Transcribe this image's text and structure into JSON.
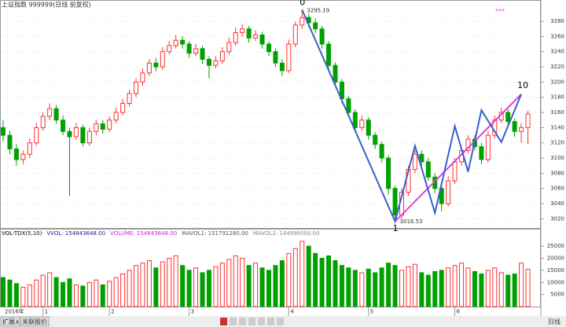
{
  "chart_data": {
    "type": "candlestick",
    "title": "上证指数 999999(日线 前复权)",
    "categories": [
      "2016年",
      null,
      null,
      null,
      null,
      null,
      "1",
      null,
      null,
      null,
      null,
      null,
      null,
      null,
      null,
      null,
      "2",
      null,
      null,
      null,
      null,
      null,
      null,
      null,
      null,
      null,
      null,
      null,
      "3",
      null,
      null,
      null,
      null,
      null,
      null,
      null,
      null,
      null,
      null,
      null,
      null,
      null,
      null,
      "4",
      null,
      null,
      null,
      null,
      null,
      null,
      null,
      null,
      null,
      null,
      null,
      "5",
      null,
      null,
      null,
      null,
      null,
      null,
      null,
      null,
      null,
      null,
      null,
      null,
      "6",
      null,
      null,
      null,
      null,
      null,
      null,
      null,
      null,
      null,
      null,
      null
    ],
    "ohlc": [
      [
        3140,
        3150,
        3122,
        3130
      ],
      [
        3130,
        3136,
        3105,
        3112
      ],
      [
        3112,
        3118,
        3090,
        3098
      ],
      [
        3098,
        3110,
        3092,
        3105
      ],
      [
        3105,
        3126,
        3100,
        3120
      ],
      [
        3120,
        3146,
        3116,
        3140
      ],
      [
        3140,
        3160,
        3136,
        3155
      ],
      [
        3155,
        3172,
        3150,
        3165
      ],
      [
        3165,
        3170,
        3145,
        3150
      ],
      [
        3150,
        3156,
        3130,
        3135
      ],
      [
        3135,
        3140,
        3050,
        3128
      ],
      [
        3128,
        3146,
        3124,
        3140
      ],
      [
        3140,
        3144,
        3115,
        3120
      ],
      [
        3120,
        3140,
        3116,
        3135
      ],
      [
        3135,
        3150,
        3130,
        3145
      ],
      [
        3145,
        3150,
        3132,
        3138
      ],
      [
        3138,
        3155,
        3134,
        3150
      ],
      [
        3150,
        3166,
        3146,
        3160
      ],
      [
        3160,
        3178,
        3156,
        3172
      ],
      [
        3172,
        3190,
        3168,
        3185
      ],
      [
        3185,
        3205,
        3180,
        3200
      ],
      [
        3200,
        3218,
        3195,
        3212
      ],
      [
        3212,
        3230,
        3208,
        3225
      ],
      [
        3225,
        3232,
        3214,
        3220
      ],
      [
        3220,
        3246,
        3216,
        3240
      ],
      [
        3240,
        3254,
        3236,
        3248
      ],
      [
        3248,
        3262,
        3244,
        3255
      ],
      [
        3255,
        3260,
        3244,
        3250
      ],
      [
        3250,
        3254,
        3232,
        3238
      ],
      [
        3238,
        3250,
        3234,
        3244
      ],
      [
        3244,
        3248,
        3224,
        3230
      ],
      [
        3230,
        3234,
        3205,
        3222
      ],
      [
        3222,
        3234,
        3218,
        3228
      ],
      [
        3228,
        3246,
        3224,
        3240
      ],
      [
        3240,
        3258,
        3236,
        3252
      ],
      [
        3252,
        3272,
        3248,
        3265
      ],
      [
        3265,
        3276,
        3260,
        3270
      ],
      [
        3270,
        3274,
        3252,
        3258
      ],
      [
        3258,
        3268,
        3254,
        3262
      ],
      [
        3262,
        3266,
        3244,
        3250
      ],
      [
        3250,
        3254,
        3234,
        3240
      ],
      [
        3240,
        3244,
        3220,
        3225
      ],
      [
        3225,
        3230,
        3208,
        3215
      ],
      [
        3215,
        3256,
        3212,
        3250
      ],
      [
        3250,
        3280,
        3246,
        3275
      ],
      [
        3275,
        3295.19,
        3270,
        3285
      ],
      [
        3285,
        3290,
        3272,
        3278
      ],
      [
        3278,
        3284,
        3264,
        3270
      ],
      [
        3270,
        3274,
        3244,
        3250
      ],
      [
        3250,
        3254,
        3216,
        3222
      ],
      [
        3222,
        3226,
        3194,
        3200
      ],
      [
        3200,
        3204,
        3172,
        3178
      ],
      [
        3178,
        3182,
        3154,
        3160
      ],
      [
        3160,
        3164,
        3134,
        3140
      ],
      [
        3140,
        3156,
        3136,
        3150
      ],
      [
        3150,
        3154,
        3124,
        3130
      ],
      [
        3130,
        3134,
        3112,
        3118
      ],
      [
        3118,
        3122,
        3094,
        3100
      ],
      [
        3100,
        3104,
        3052,
        3060
      ],
      [
        3060,
        3064,
        3016.53,
        3025
      ],
      [
        3025,
        3060,
        3020,
        3055
      ],
      [
        3055,
        3090,
        3050,
        3085
      ],
      [
        3085,
        3110,
        3080,
        3105
      ],
      [
        3105,
        3110,
        3090,
        3095
      ],
      [
        3095,
        3100,
        3070,
        3075
      ],
      [
        3075,
        3080,
        3054,
        3060
      ],
      [
        3060,
        3064,
        3030,
        3040
      ],
      [
        3040,
        3076,
        3036,
        3070
      ],
      [
        3070,
        3100,
        3066,
        3095
      ],
      [
        3095,
        3116,
        3090,
        3110
      ],
      [
        3110,
        3130,
        3106,
        3125
      ],
      [
        3125,
        3130,
        3110,
        3115
      ],
      [
        3115,
        3120,
        3092,
        3098
      ],
      [
        3098,
        3136,
        3094,
        3130
      ],
      [
        3130,
        3156,
        3126,
        3150
      ],
      [
        3150,
        3166,
        3146,
        3160
      ],
      [
        3160,
        3164,
        3142,
        3148
      ],
      [
        3148,
        3152,
        3128,
        3135
      ],
      [
        3135,
        3146,
        3120,
        3140
      ],
      [
        3140,
        3162,
        3118,
        3158
      ]
    ],
    "ylim": [
      3008,
      3308
    ],
    "yticks": [
      3020,
      3040,
      3060,
      3080,
      3100,
      3120,
      3140,
      3160,
      3180,
      3200,
      3220,
      3240,
      3260,
      3280
    ],
    "grid": true,
    "up_color": "#ff3030",
    "down_color": "#00a000",
    "wave": {
      "x": [
        45,
        59,
        62,
        65,
        68,
        70,
        72,
        75,
        78
      ],
      "values": [
        3295.19,
        3016.53,
        3116,
        3028,
        3142,
        3082,
        3163,
        3121,
        3184
      ],
      "color": "#3a5fcd"
    },
    "trend": {
      "x": [
        59,
        78
      ],
      "values": [
        3016.53,
        3184
      ],
      "color": "#e040e0"
    },
    "wave_labels": [
      "0",
      "1",
      "10"
    ],
    "price_labels": [
      "3295.19",
      "3016.53"
    ],
    "volume": [
      12000,
      11000,
      9500,
      8000,
      9000,
      11000,
      13000,
      14000,
      12000,
      10000,
      11500,
      9000,
      8500,
      10000,
      11000,
      9000,
      10500,
      12000,
      13500,
      15000,
      17000,
      18000,
      19000,
      16000,
      18500,
      20000,
      21000,
      17000,
      15000,
      16000,
      14000,
      15000,
      16500,
      18000,
      19500,
      21000,
      20000,
      17000,
      18000,
      16000,
      15000,
      17000,
      19000,
      22000,
      24000,
      27000,
      25000,
      22000,
      20000,
      21000,
      19000,
      17000,
      16000,
      15000,
      14000,
      15500,
      14000,
      16000,
      18000,
      17000,
      15000,
      16500,
      17500,
      14000,
      13000,
      14500,
      15000,
      16000,
      17000,
      18000,
      16000,
      14500,
      13500,
      15000,
      16000,
      14000,
      13000,
      13500,
      18000,
      15484
    ],
    "volume_ylim": [
      0,
      28300
    ],
    "volume_yticks": [
      5000,
      10000,
      15000,
      20000,
      25000
    ],
    "volume_legend": [
      {
        "text": "VOL-TDX(5,10)",
        "color": "#000000"
      },
      {
        "text": "VVOL: 154843648.00",
        "color": "#1a1a8c"
      },
      {
        "text": "VOLUME: 154843648.00",
        "color": "#d020d0"
      },
      {
        "text": "MAVOL1: 151791280.00",
        "color": "#555555"
      },
      {
        "text": "MAVOL2: 144996000.00",
        "color": "#888888"
      }
    ]
  },
  "toolbar": {
    "tabs": [
      "扩展∧",
      "关联报价"
    ],
    "period": "日线"
  }
}
